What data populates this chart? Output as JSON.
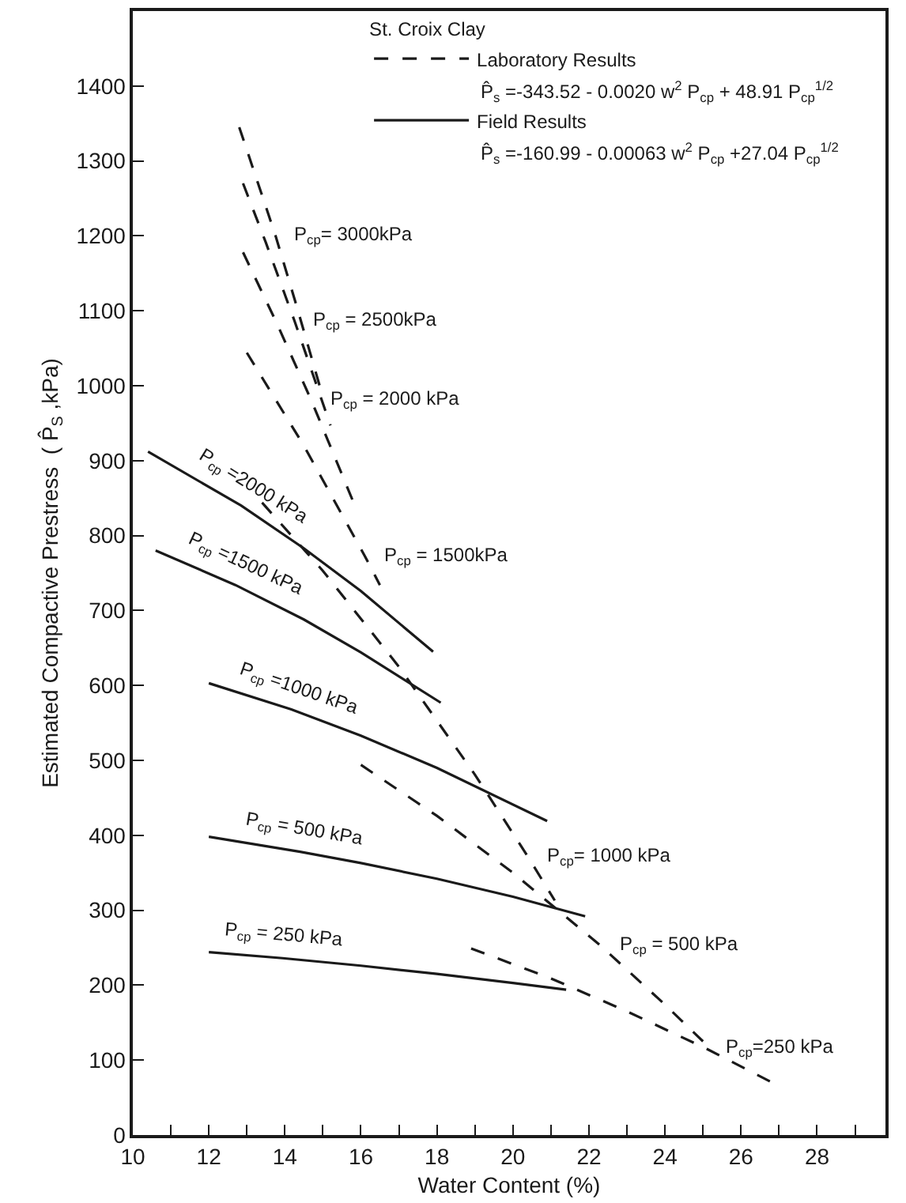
{
  "chart_data": {
    "type": "line",
    "legend_title": "St. Croix Clay",
    "xlabel": "Water Content (%)",
    "ylabel": "Estimated Compactive Prestress  ( P̂$_{S}$ ,kPa)",
    "xlim": [
      10,
      29.8
    ],
    "ylim": [
      0,
      1500
    ],
    "xticks": [
      10,
      {
        "value": 11,
        "label": null
      },
      12,
      {
        "value": 13,
        "label": null
      },
      14,
      {
        "value": 15,
        "label": null
      },
      16,
      {
        "value": 17,
        "label": null
      },
      18,
      {
        "value": 19,
        "label": null
      },
      20,
      {
        "value": 21,
        "label": null
      },
      22,
      {
        "value": 23,
        "label": null
      },
      24,
      {
        "value": 25,
        "label": null
      },
      26,
      {
        "value": 27,
        "label": null
      },
      28,
      {
        "value": 29,
        "label": null
      }
    ],
    "yticks": [
      0,
      100,
      200,
      300,
      400,
      500,
      600,
      700,
      800,
      900,
      1000,
      1100,
      1200,
      1300,
      1400
    ],
    "grid": false,
    "legend": "top right",
    "marker": "none",
    "series": [
      {
        "name": "Laboratory Results",
        "color": "#1a1a1a",
        "line_style": "dashed",
        "x": [
          12.8,
          13.75,
          14.3,
          15,
          null,
          12.9,
          13.5,
          14.25,
          15.2,
          null,
          12.9,
          13.8,
          14.7,
          15.8,
          null,
          13,
          14.5,
          16.1,
          16.5,
          null,
          13.4,
          15,
          17,
          19,
          20.4,
          21.1,
          null,
          16,
          18,
          20,
          22.3,
          24,
          25,
          null,
          18.9,
          21,
          23,
          25.1,
          26.9
        ],
        "values": [
          1345,
          1201,
          1108,
          985,
          null,
          1270,
          1191,
          1087,
          947,
          null,
          1178,
          1082,
          980,
          845,
          null,
          1044,
          920,
          773,
          734,
          null,
          844,
          753,
          625,
          481,
          371,
          313,
          null,
          494,
          426,
          350,
          253,
          174,
          125,
          null,
          249,
          209,
          165,
          115,
          68
        ]
      },
      {
        "name": "Field Results",
        "color": "#1a1a1a",
        "line_style": "solid",
        "x": [
          10.4,
          12.85,
          14.5,
          16,
          17.9,
          null,
          10.6,
          12.7,
          14.5,
          16,
          18.1,
          null,
          12,
          14.17,
          16,
          18,
          20.9,
          null,
          12,
          14.4,
          16,
          18,
          20,
          21.9,
          null,
          12,
          13.94,
          16,
          18,
          20,
          21.4
        ],
        "values": [
          912,
          840,
          783,
          726,
          645,
          null,
          780,
          734,
          688,
          644,
          577,
          null,
          603,
          568,
          533,
          490,
          419,
          null,
          398,
          378,
          363,
          342,
          318,
          292,
          null,
          244,
          236,
          226,
          215,
          203,
          194
        ]
      }
    ],
    "annotations": [
      "P̂$_{s}$ =-343.52 - 0.0020 w$^{2}$ P$_{cp}$ + 48.91 P$_{cp}$$^{1/2}$",
      "P̂$_{s}$ =-160.99 - 0.00063 w$^{2}$ P$_{cp}$ +27.04 P$_{cp}$$^{1/2}$",
      {
        "text": "P$_{cp}$= 3000kPa",
        "x": 13.75,
        "y": 1201
      },
      {
        "text": "P$_{cp}$ = 2500kPa",
        "x": 14.25,
        "y": 1087
      },
      {
        "text": "P$_{cp}$ = 2000 kPa",
        "x": 14.7,
        "y": 980
      },
      {
        "text": "P$_{cp}$ = 1500kPa",
        "x": 16.1,
        "y": 773
      },
      {
        "text": "P$_{cp}$= 1000 kPa",
        "x": 20.4,
        "y": 371
      },
      {
        "text": "P$_{cp}$ = 500 kPa",
        "x": 22.3,
        "y": 253
      },
      {
        "text": "P$_{cp}$=250 kPa",
        "x": 25.1,
        "y": 115
      },
      {
        "text": "P$_{cp}$ =2000 kPa",
        "x": 12.85,
        "y": 840
      },
      {
        "text": "P$_{cp}$ =1500 kPa",
        "x": 12.7,
        "y": 734
      },
      {
        "text": "P$_{cp}$ =1000 kPa",
        "x": 14.17,
        "y": 568
      },
      {
        "text": "P$_{cp}$ = 500 kPa",
        "x": 14.4,
        "y": 378
      },
      {
        "text": "P$_{cp}$ = 250 kPa",
        "x": 13.94,
        "y": 236
      }
    ]
  }
}
